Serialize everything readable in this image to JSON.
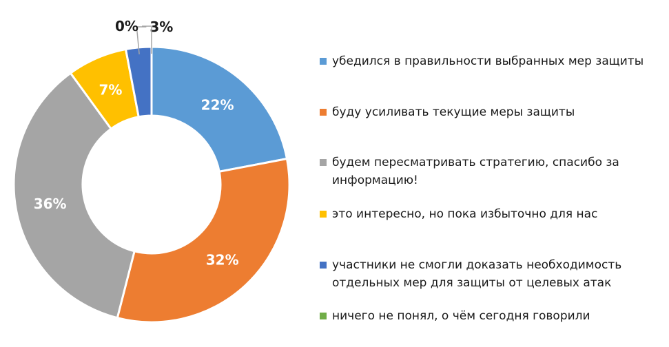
{
  "chart_data": {
    "type": "pie",
    "donut": true,
    "title": "",
    "legend_position": "right",
    "slices": [
      {
        "label": "убедился в правильности выбранных мер защиты",
        "value": 22,
        "display": "22%",
        "color": "#5b9bd5"
      },
      {
        "label": "буду усиливать текущие меры защиты",
        "value": 32,
        "display": "32%",
        "color": "#ed7d31"
      },
      {
        "label": "будем пересматривать стратегию, спасибо за информацию!",
        "value": 36,
        "display": "36%",
        "color": "#a5a5a5"
      },
      {
        "label": "это интересно, но пока избыточно для нас",
        "value": 7,
        "display": "7%",
        "color": "#ffc000"
      },
      {
        "label": "участники не смогли доказать необходимость отдельных мер для защиты от целевых атак",
        "value": 3,
        "display": "3%",
        "color": "#4472c4"
      },
      {
        "label": "ничего не понял, о чём сегодня говорили",
        "value": 0,
        "display": "0%",
        "color": "#70ad47"
      }
    ]
  }
}
